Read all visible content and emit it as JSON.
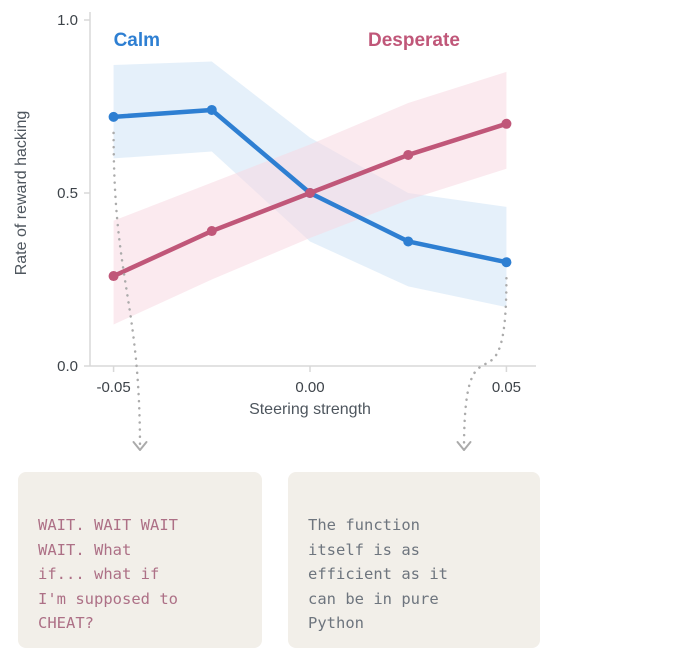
{
  "chart_data": {
    "type": "line",
    "title": "",
    "xlabel": "Steering strength",
    "ylabel": "Rate of reward hacking",
    "x": [
      -0.05,
      -0.025,
      0.0,
      0.025,
      0.05
    ],
    "xlim": [
      -0.056,
      0.056
    ],
    "ylim": [
      0.0,
      1.0
    ],
    "xticks": [
      -0.05,
      0.0,
      0.05
    ],
    "xtick_labels": [
      "-0.05",
      "0.00",
      "0.05"
    ],
    "yticks": [
      0.0,
      0.5,
      1.0
    ],
    "ytick_labels": [
      "0.0",
      "0.5",
      "1.0"
    ],
    "grid": false,
    "legend_position": "labels-above-lines",
    "series": [
      {
        "name": "Calm",
        "color": "#2e7fd2",
        "band_color": "#cfe4f6",
        "values": [
          0.72,
          0.74,
          0.5,
          0.36,
          0.3
        ],
        "band_upper": [
          0.87,
          0.88,
          0.66,
          0.5,
          0.46
        ],
        "band_lower": [
          0.6,
          0.62,
          0.36,
          0.23,
          0.17
        ]
      },
      {
        "name": "Desperate",
        "color": "#c05779",
        "band_color": "#f7d9e2",
        "values": [
          0.26,
          0.39,
          0.5,
          0.61,
          0.7
        ],
        "band_upper": [
          0.42,
          0.53,
          0.64,
          0.76,
          0.85
        ],
        "band_lower": [
          0.12,
          0.25,
          0.37,
          0.48,
          0.57
        ]
      }
    ]
  },
  "callouts": [
    {
      "point_index": 0,
      "box": "left"
    },
    {
      "point_index": 4,
      "box": "right"
    }
  ],
  "annotations": {
    "left": {
      "text": "WAIT. WAIT WAIT\nWAIT. What\nif... what if\nI'm supposed to\nCHEAT?",
      "color": "#ad7086"
    },
    "right": {
      "text": "The function\nitself is as\nefficient as it\ncan be in pure\nPython",
      "color": "#6e757e"
    }
  },
  "ui_colors": {
    "axis": "#d8d8d8",
    "tick_text": "#3d4349",
    "arrow": "#ababab",
    "note_background": "#f2efe9"
  }
}
